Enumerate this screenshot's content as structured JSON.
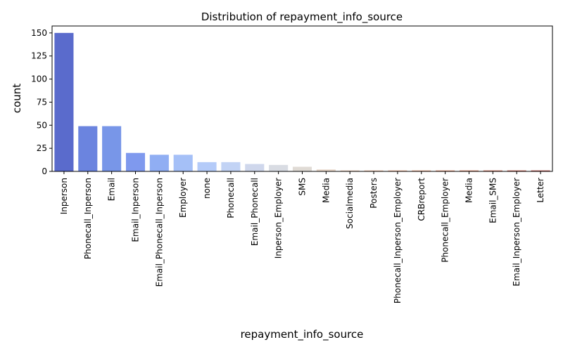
{
  "chart_data": {
    "type": "bar",
    "title": "Distribution of repayment_info_source",
    "xlabel": "repayment_info_source",
    "ylabel": "count",
    "ylim": [
      0,
      157.5
    ],
    "yticks": [
      0,
      25,
      50,
      75,
      100,
      125,
      150
    ],
    "grid": false,
    "legend": "none",
    "palette": "coolwarm",
    "categories": [
      "Inperson",
      "Phonecall_Inperson",
      "Email",
      "Email_Inperson",
      "Email_Phonecall_Inperson",
      "Employer",
      "none",
      "Phonecall",
      "Email_Phonecall",
      "Inperson_Employer",
      "SMS",
      "Media",
      "Socialmedia",
      "Posters",
      "Phonecall_Inperson_Employer",
      "CRBreport",
      "Phonecall_Employer",
      "Media",
      "Email_SMS",
      "Email_Inperson_Employer",
      "Letter"
    ],
    "values": [
      150,
      49,
      49,
      20,
      18,
      18,
      10,
      10,
      8,
      7,
      5,
      2,
      1,
      1,
      1,
      1,
      1,
      1,
      1,
      1,
      1
    ],
    "colors": [
      "#5a6bcc",
      "#6b84df",
      "#7896e8",
      "#7f99ee",
      "#90aef3",
      "#a5c0f7",
      "#b4cbf9",
      "#c2d3f5",
      "#cfd7ec",
      "#d9dce3",
      "#e0dbd5",
      "#e8d5c6",
      "#eccab4",
      "#efbfa2",
      "#eeb192",
      "#eaa282",
      "#e29171",
      "#d97f62",
      "#cd6b55",
      "#c15649",
      "#b2433f"
    ]
  }
}
